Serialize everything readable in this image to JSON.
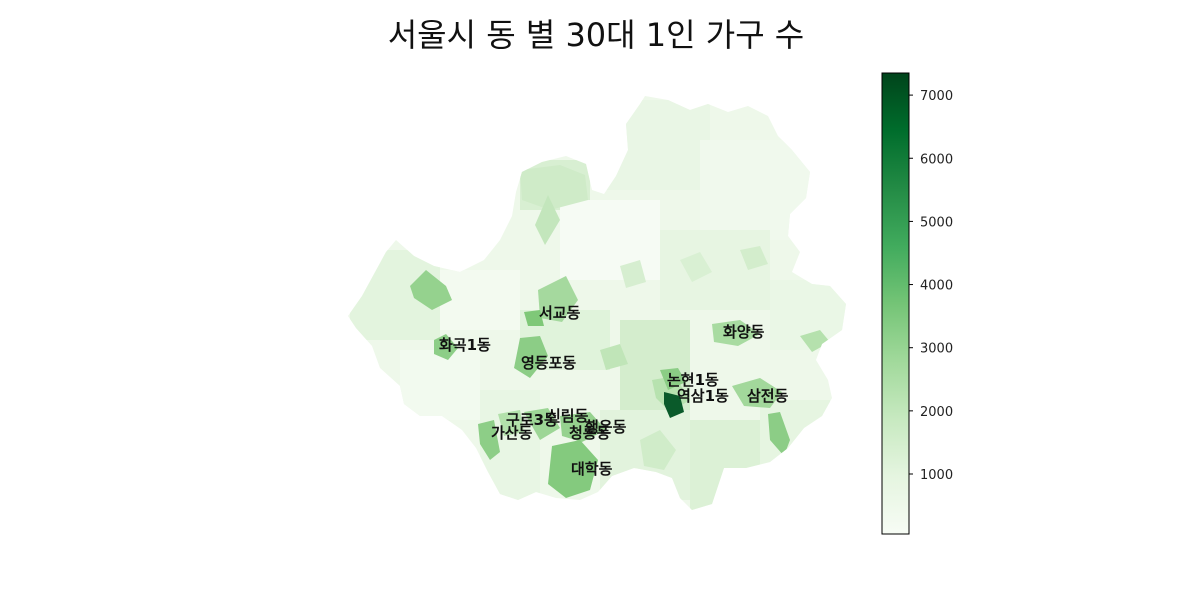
{
  "title": "서울시 동 별 30대 1인 가구 수",
  "colorbar": {
    "colormap": "Greens",
    "min": 50,
    "max": 7350,
    "ticks": [
      "1000",
      "2000",
      "3000",
      "4000",
      "5000",
      "6000",
      "7000"
    ]
  },
  "colors": {
    "low": "#f7fcf5",
    "mid": "#74c476",
    "high": "#00441b"
  },
  "map_labels": [
    {
      "name": "서교동",
      "value": 3600
    },
    {
      "name": "화곡1동",
      "value": 3300
    },
    {
      "name": "영등포동",
      "value": 3900
    },
    {
      "name": "화양동",
      "value": 3500
    },
    {
      "name": "논현1동",
      "value": 4100
    },
    {
      "name": "역삼1동",
      "value": 7300
    },
    {
      "name": "삼전동",
      "value": 3700
    },
    {
      "name": "구로3동",
      "value": 3400
    },
    {
      "name": "신림동",
      "value": 3900
    },
    {
      "name": "가산동",
      "value": 3500
    },
    {
      "name": "청룡동",
      "value": 3600
    },
    {
      "name": "행운동",
      "value": 3300
    },
    {
      "name": "대학동",
      "value": 4000
    }
  ]
}
